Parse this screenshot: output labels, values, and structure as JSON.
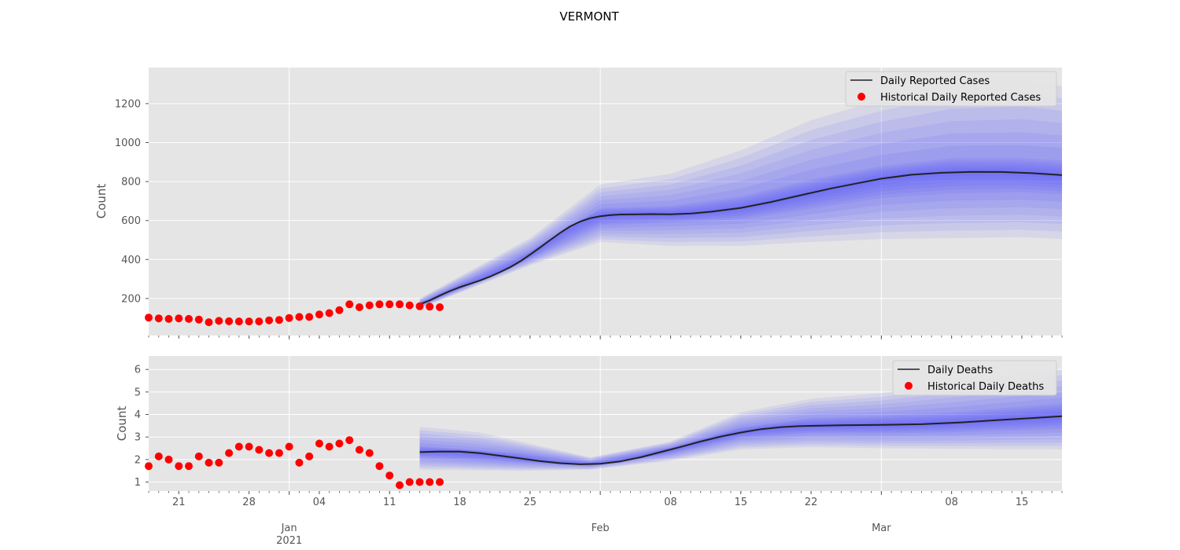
{
  "figure": {
    "title": "VERMONT"
  },
  "colors": {
    "panel_bg": "#e5e5e5",
    "grid": "#ffffff",
    "median_line": "#222222",
    "historical": "#ff0000",
    "band": "#4040ff",
    "tick_text": "#555555"
  },
  "x_axis": {
    "date_range": [
      "2020-12-18",
      "2021-03-19"
    ],
    "major_ticks": [
      {
        "date": "2021-01-01",
        "label": "Jan",
        "sublabel": "2021"
      },
      {
        "date": "2021-02-01",
        "label": "Feb",
        "sublabel": ""
      },
      {
        "date": "2021-03-01",
        "label": "Mar",
        "sublabel": ""
      }
    ],
    "minor_ticks": [
      {
        "date": "2020-12-21",
        "label": "21"
      },
      {
        "date": "2020-12-28",
        "label": "28"
      },
      {
        "date": "2021-01-04",
        "label": "04"
      },
      {
        "date": "2021-01-11",
        "label": "11"
      },
      {
        "date": "2021-01-18",
        "label": "18"
      },
      {
        "date": "2021-01-25",
        "label": "25"
      },
      {
        "date": "2021-02-08",
        "label": "08"
      },
      {
        "date": "2021-02-15",
        "label": "15"
      },
      {
        "date": "2021-02-22",
        "label": "22"
      },
      {
        "date": "2021-03-08",
        "label": "08"
      },
      {
        "date": "2021-03-15",
        "label": "15"
      }
    ]
  },
  "chart_data": [
    {
      "type": "line",
      "title": "",
      "xlabel": "",
      "ylabel": "Count",
      "ylim": [
        10,
        1385
      ],
      "yticks": [
        200,
        400,
        600,
        800,
        1000,
        1200
      ],
      "grid": true,
      "legend_position": "top-right",
      "legend": {
        "line_label": "Daily Reported Cases",
        "points_label": "Historical Daily Reported Cases"
      },
      "series": [
        {
          "name": "Daily Reported Cases",
          "kind": "median_line",
          "points": [
            [
              "2021-01-14",
              170
            ],
            [
              "2021-01-15",
              190
            ],
            [
              "2021-01-16",
              215
            ],
            [
              "2021-01-17",
              238
            ],
            [
              "2021-01-18",
              258
            ],
            [
              "2021-01-19",
              275
            ],
            [
              "2021-01-20",
              292
            ],
            [
              "2021-01-21",
              312
            ],
            [
              "2021-01-22",
              335
            ],
            [
              "2021-01-23",
              360
            ],
            [
              "2021-01-24",
              390
            ],
            [
              "2021-01-25",
              425
            ],
            [
              "2021-01-26",
              462
            ],
            [
              "2021-01-27",
              500
            ],
            [
              "2021-01-28",
              537
            ],
            [
              "2021-01-29",
              570
            ],
            [
              "2021-01-30",
              595
            ],
            [
              "2021-01-31",
              612
            ],
            [
              "2021-02-01",
              622
            ],
            [
              "2021-02-02",
              628
            ],
            [
              "2021-02-03",
              631
            ],
            [
              "2021-02-05",
              632
            ],
            [
              "2021-02-06",
              633
            ],
            [
              "2021-02-08",
              632
            ],
            [
              "2021-02-10",
              636
            ],
            [
              "2021-02-12",
              645
            ],
            [
              "2021-02-15",
              665
            ],
            [
              "2021-02-18",
              695
            ],
            [
              "2021-02-21",
              730
            ],
            [
              "2021-02-24",
              765
            ],
            [
              "2021-02-27",
              795
            ],
            [
              "2021-03-01",
              815
            ],
            [
              "2021-03-04",
              835
            ],
            [
              "2021-03-07",
              845
            ],
            [
              "2021-03-10",
              850
            ],
            [
              "2021-03-13",
              849
            ],
            [
              "2021-03-16",
              843
            ],
            [
              "2021-03-19",
              833
            ]
          ]
        },
        {
          "name": "Historical Daily Reported Cases",
          "kind": "historical_points",
          "points": [
            [
              "2020-12-18",
              102
            ],
            [
              "2020-12-19",
              98
            ],
            [
              "2020-12-20",
              95
            ],
            [
              "2020-12-21",
              98
            ],
            [
              "2020-12-22",
              95
            ],
            [
              "2020-12-23",
              92
            ],
            [
              "2020-12-24",
              78
            ],
            [
              "2020-12-25",
              85
            ],
            [
              "2020-12-26",
              83
            ],
            [
              "2020-12-27",
              82
            ],
            [
              "2020-12-28",
              82
            ],
            [
              "2020-12-29",
              82
            ],
            [
              "2020-12-30",
              88
            ],
            [
              "2020-12-31",
              90
            ],
            [
              "2021-01-01",
              100
            ],
            [
              "2021-01-02",
              105
            ],
            [
              "2021-01-03",
              105
            ],
            [
              "2021-01-04",
              118
            ],
            [
              "2021-01-05",
              125
            ],
            [
              "2021-01-06",
              140
            ],
            [
              "2021-01-07",
              170
            ],
            [
              "2021-01-08",
              155
            ],
            [
              "2021-01-09",
              165
            ],
            [
              "2021-01-10",
              170
            ],
            [
              "2021-01-11",
              170
            ],
            [
              "2021-01-12",
              170
            ],
            [
              "2021-01-13",
              165
            ],
            [
              "2021-01-14",
              160
            ],
            [
              "2021-01-15",
              158
            ],
            [
              "2021-01-16",
              155
            ]
          ]
        }
      ],
      "uncertainty_bands": [
        {
          "level": "outer",
          "lower": [
            [
              "2021-01-14",
              150
            ],
            [
              "2021-01-25",
              370
            ],
            [
              "2021-02-01",
              490
            ],
            [
              "2021-02-08",
              470
            ],
            [
              "2021-02-15",
              470
            ],
            [
              "2021-02-22",
              490
            ],
            [
              "2021-03-01",
              505
            ],
            [
              "2021-03-08",
              510
            ],
            [
              "2021-03-15",
              515
            ],
            [
              "2021-03-19",
              505
            ]
          ],
          "upper": [
            [
              "2021-01-14",
              200
            ],
            [
              "2021-01-25",
              510
            ],
            [
              "2021-02-01",
              785
            ],
            [
              "2021-02-08",
              840
            ],
            [
              "2021-02-15",
              960
            ],
            [
              "2021-02-22",
              1115
            ],
            [
              "2021-03-01",
              1220
            ],
            [
              "2021-03-08",
              1300
            ],
            [
              "2021-03-15",
              1320
            ],
            [
              "2021-03-19",
              1290
            ]
          ]
        },
        {
          "level": "inner",
          "lower": [
            [
              "2021-01-14",
              160
            ],
            [
              "2021-01-25",
              405
            ],
            [
              "2021-02-01",
              575
            ],
            [
              "2021-02-08",
              590
            ],
            [
              "2021-02-15",
              605
            ],
            [
              "2021-02-22",
              660
            ],
            [
              "2021-03-01",
              715
            ],
            [
              "2021-03-08",
              740
            ],
            [
              "2021-03-15",
              745
            ],
            [
              "2021-03-19",
              735
            ]
          ],
          "upper": [
            [
              "2021-01-14",
              180
            ],
            [
              "2021-01-25",
              445
            ],
            [
              "2021-02-01",
              665
            ],
            [
              "2021-02-08",
              675
            ],
            [
              "2021-02-15",
              725
            ],
            [
              "2021-02-22",
              810
            ],
            [
              "2021-03-01",
              880
            ],
            [
              "2021-03-08",
              920
            ],
            [
              "2021-03-15",
              920
            ],
            [
              "2021-03-19",
              910
            ]
          ]
        }
      ]
    },
    {
      "type": "line",
      "title": "",
      "xlabel": "",
      "ylabel": "Count",
      "ylim": [
        0.6,
        6.6
      ],
      "yticks": [
        1,
        2,
        3,
        4,
        5,
        6
      ],
      "grid": true,
      "legend_position": "top-right",
      "legend": {
        "line_label": "Daily Deaths",
        "points_label": "Historical Daily Deaths"
      },
      "series": [
        {
          "name": "Daily Deaths",
          "kind": "median_line",
          "points": [
            [
              "2021-01-14",
              2.33
            ],
            [
              "2021-01-16",
              2.35
            ],
            [
              "2021-01-18",
              2.35
            ],
            [
              "2021-01-20",
              2.28
            ],
            [
              "2021-01-22",
              2.17
            ],
            [
              "2021-01-24",
              2.05
            ],
            [
              "2021-01-26",
              1.93
            ],
            [
              "2021-01-28",
              1.84
            ],
            [
              "2021-01-30",
              1.79
            ],
            [
              "2021-02-01",
              1.81
            ],
            [
              "2021-02-03",
              1.92
            ],
            [
              "2021-02-05",
              2.1
            ],
            [
              "2021-02-07",
              2.33
            ],
            [
              "2021-02-09",
              2.56
            ],
            [
              "2021-02-11",
              2.8
            ],
            [
              "2021-02-13",
              3.02
            ],
            [
              "2021-02-15",
              3.2
            ],
            [
              "2021-02-17",
              3.35
            ],
            [
              "2021-02-19",
              3.44
            ],
            [
              "2021-02-21",
              3.49
            ],
            [
              "2021-02-25",
              3.52
            ],
            [
              "2021-03-01",
              3.54
            ],
            [
              "2021-03-05",
              3.57
            ],
            [
              "2021-03-09",
              3.65
            ],
            [
              "2021-03-13",
              3.76
            ],
            [
              "2021-03-16",
              3.84
            ],
            [
              "2021-03-19",
              3.92
            ]
          ]
        },
        {
          "name": "Historical Daily Deaths",
          "kind": "historical_points",
          "points": [
            [
              "2020-12-18",
              1.71
            ],
            [
              "2020-12-19",
              2.14
            ],
            [
              "2020-12-20",
              2.0
            ],
            [
              "2020-12-21",
              1.71
            ],
            [
              "2020-12-22",
              1.71
            ],
            [
              "2020-12-23",
              2.14
            ],
            [
              "2020-12-24",
              1.86
            ],
            [
              "2020-12-25",
              1.86
            ],
            [
              "2020-12-26",
              2.29
            ],
            [
              "2020-12-27",
              2.57
            ],
            [
              "2020-12-28",
              2.57
            ],
            [
              "2020-12-29",
              2.43
            ],
            [
              "2020-12-30",
              2.29
            ],
            [
              "2020-12-31",
              2.29
            ],
            [
              "2021-01-01",
              2.57
            ],
            [
              "2021-01-02",
              1.86
            ],
            [
              "2021-01-03",
              2.14
            ],
            [
              "2021-01-04",
              2.71
            ],
            [
              "2021-01-05",
              2.57
            ],
            [
              "2021-01-06",
              2.71
            ],
            [
              "2021-01-07",
              2.86
            ],
            [
              "2021-01-08",
              2.43
            ],
            [
              "2021-01-09",
              2.29
            ],
            [
              "2021-01-10",
              1.71
            ],
            [
              "2021-01-11",
              1.29
            ],
            [
              "2021-01-12",
              0.86
            ],
            [
              "2021-01-13",
              1.0
            ],
            [
              "2021-01-14",
              1.0
            ],
            [
              "2021-01-15",
              1.0
            ],
            [
              "2021-01-16",
              1.0
            ]
          ]
        }
      ],
      "uncertainty_bands": [
        {
          "level": "outer",
          "lower": [
            [
              "2021-01-14",
              1.55
            ],
            [
              "2021-01-24",
              1.5
            ],
            [
              "2021-01-31",
              1.55
            ],
            [
              "2021-02-08",
              1.95
            ],
            [
              "2021-02-15",
              2.45
            ],
            [
              "2021-02-22",
              2.55
            ],
            [
              "2021-03-01",
              2.5
            ],
            [
              "2021-03-08",
              2.48
            ],
            [
              "2021-03-19",
              2.45
            ]
          ],
          "upper": [
            [
              "2021-01-14",
              3.45
            ],
            [
              "2021-01-20",
              3.2
            ],
            [
              "2021-01-31",
              2.1
            ],
            [
              "2021-02-08",
              2.8
            ],
            [
              "2021-02-15",
              4.1
            ],
            [
              "2021-02-22",
              4.7
            ],
            [
              "2021-03-01",
              4.95
            ],
            [
              "2021-03-08",
              5.4
            ],
            [
              "2021-03-19",
              6.0
            ]
          ]
        },
        {
          "level": "inner",
          "lower": [
            [
              "2021-01-14",
              2.1
            ],
            [
              "2021-01-24",
              1.87
            ],
            [
              "2021-01-31",
              1.72
            ],
            [
              "2021-02-08",
              2.25
            ],
            [
              "2021-02-15",
              2.95
            ],
            [
              "2021-02-22",
              3.15
            ],
            [
              "2021-03-01",
              3.15
            ],
            [
              "2021-03-08",
              3.2
            ],
            [
              "2021-03-19",
              3.35
            ]
          ],
          "upper": [
            [
              "2021-01-14",
              2.6
            ],
            [
              "2021-01-24",
              2.3
            ],
            [
              "2021-01-31",
              1.9
            ],
            [
              "2021-02-08",
              2.55
            ],
            [
              "2021-02-15",
              3.45
            ],
            [
              "2021-02-22",
              3.85
            ],
            [
              "2021-03-01",
              3.95
            ],
            [
              "2021-03-08",
              4.1
            ],
            [
              "2021-03-19",
              4.5
            ]
          ]
        }
      ]
    }
  ]
}
